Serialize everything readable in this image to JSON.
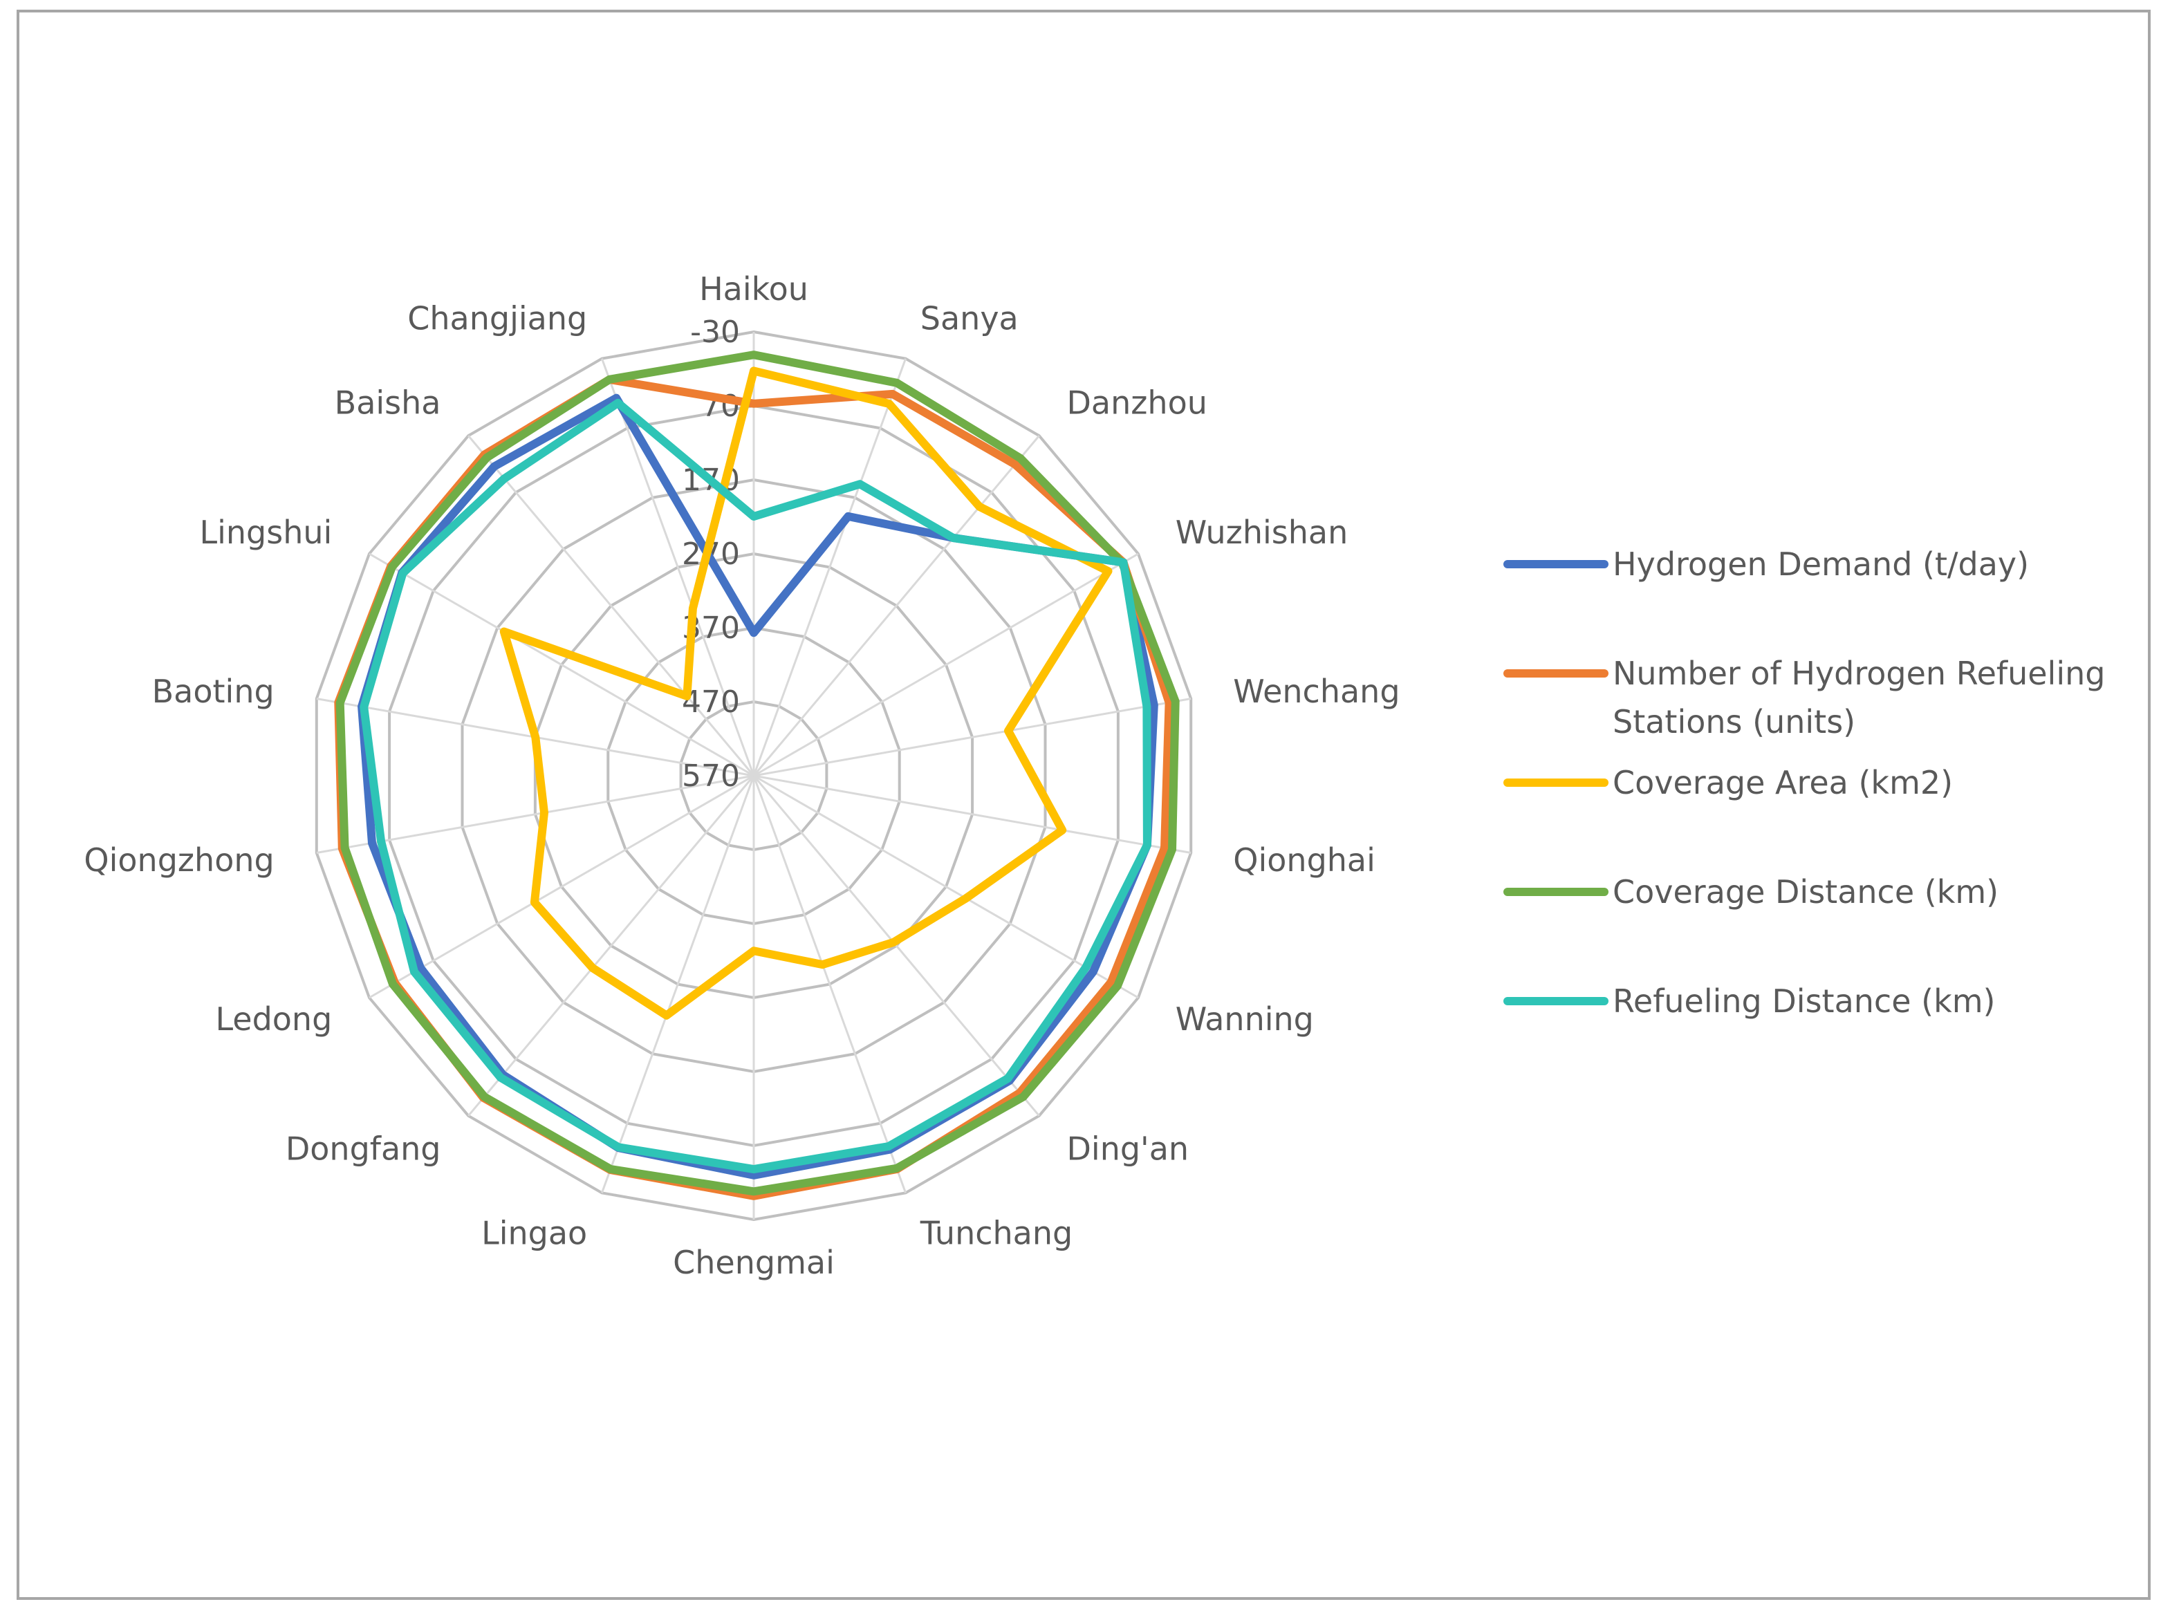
{
  "chart_data": {
    "type": "radar",
    "title": "",
    "categories": [
      "Haikou",
      "Sanya",
      "Danzhou",
      "Wuzhishan",
      "Wenchang",
      "Qionghai",
      "Wanning",
      "Ding'an",
      "Tunchang",
      "Chengmai",
      "Lingao",
      "Dongfang",
      "Ledong",
      "Qiongzhong",
      "Baoting",
      "Lingshui",
      "Baisha",
      "Changjiang"
    ],
    "axis": {
      "ticks": [
        "-30",
        "70",
        "170",
        "270",
        "370",
        "470",
        "570"
      ],
      "min": -30,
      "max": 570,
      "reversed": true,
      "step": 100
    },
    "grid": true,
    "legend_position": "right",
    "series": [
      {
        "name": "Hydrogen Demand (t/day)",
        "color": "#4472c4",
        "values": [
          376.7,
          196.9,
          150.3,
          -6.8,
          20.7,
          30.1,
          40.2,
          32.1,
          32.3,
          30,
          34.8,
          42.5,
          50.1,
          46.2,
          32,
          21,
          24.3,
          26.7
        ]
      },
      {
        "name": "Number of Hydrogen Refueling Stations (units)",
        "color": "#ed7d31",
        "values": [
          67,
          20.9,
          20.6,
          -6.8,
          0,
          6.3,
          12.3,
          10.5,
          4.1,
          2,
          3.1,
          1.7,
          9.9,
          5.2,
          -0.1,
          3.7,
          3.6,
          0
        ]
      },
      {
        "name": "Coverage Area (km2)",
        "color": "#ffc000",
        "values": [
          22.7,
          34.9,
          95.3,
          16.9,
          220.8,
          146.6,
          238.7,
          276.1,
          298.4,
          333.3,
          225.2,
          230.9,
          227.8,
          282.5,
          270.4,
          180.2,
          429.6,
          329.3
        ]
      },
      {
        "name": "Coverage Distance (km)",
        "color": "#70ad47",
        "values": [
          1,
          4.9,
          9.6,
          -5,
          -8.6,
          -4.1,
          2.3,
          3.4,
          5.3,
          8,
          4.1,
          3.6,
          6.7,
          8.8,
          2.2,
          5.6,
          8.7,
          -0.1
        ]
      },
      {
        "name": "Refueling Distance (km)",
        "color": "#2ec4b6",
        "values": [
          219.5,
          150.5,
          150.5,
          -6.8,
          30.6,
          30.1,
          51.8,
          35.8,
          36.9,
          38.1,
          35.6,
          37.5,
          40.1,
          58.6,
          35,
          22.3,
          45.6,
          33.7
        ]
      }
    ]
  }
}
